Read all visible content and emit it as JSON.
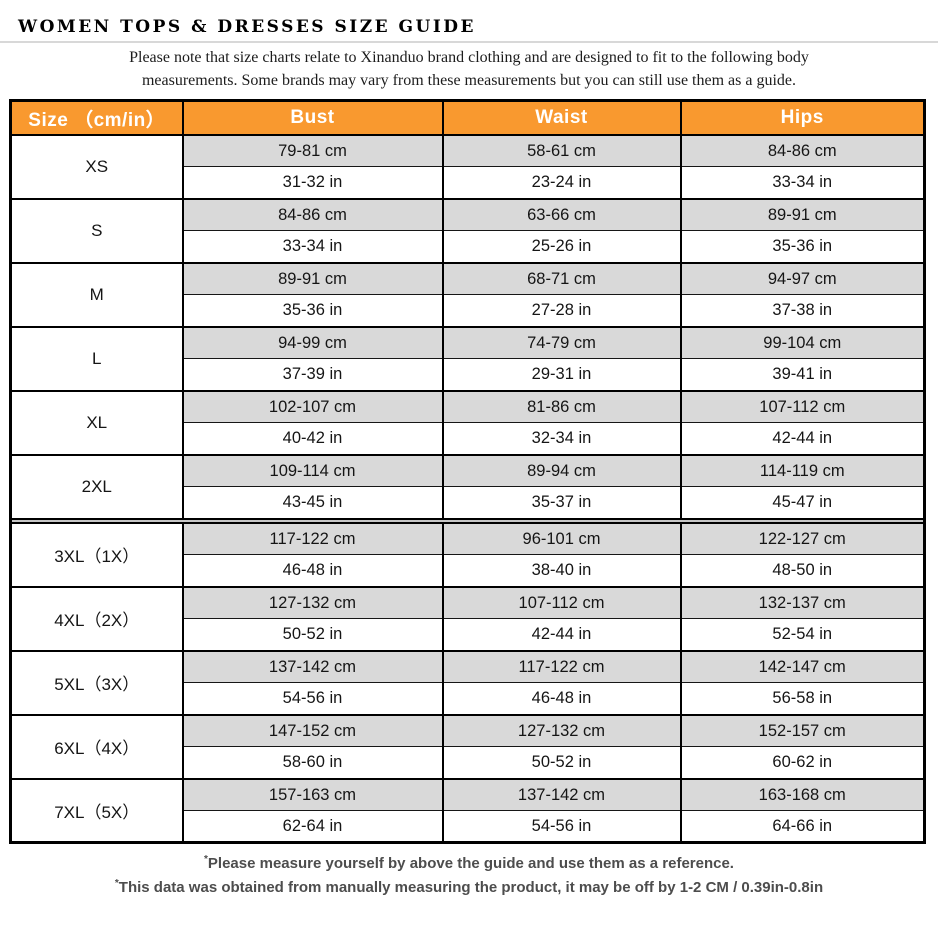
{
  "page": {
    "title": "WOMEN TOPS & DRESSES SIZE GUIDE",
    "note_line1": "Please note that size charts relate to  Xinanduo brand clothing and are designed to fit to the following body",
    "note_line2": "measurements. Some brands may vary from these measurements but you can still use them as a guide."
  },
  "colors": {
    "header_orange": "#f9992f",
    "row_gray": "#d9d9d9",
    "separator_gray": "#c6c6c6"
  },
  "table": {
    "columns": [
      "Size （cm/in）",
      "Bust",
      "Waist",
      "Hips"
    ],
    "rows": [
      {
        "size": "XS",
        "bust_cm": "79-81 cm",
        "waist_cm": "58-61 cm",
        "hips_cm": "84-86 cm",
        "bust_in": "31-32 in",
        "waist_in": "23-24 in",
        "hips_in": "33-34 in",
        "divider_before": false
      },
      {
        "size": "S",
        "bust_cm": "84-86 cm",
        "waist_cm": "63-66 cm",
        "hips_cm": "89-91 cm",
        "bust_in": "33-34 in",
        "waist_in": "25-26 in",
        "hips_in": "35-36 in",
        "divider_before": false
      },
      {
        "size": "M",
        "bust_cm": "89-91 cm",
        "waist_cm": "68-71 cm",
        "hips_cm": "94-97 cm",
        "bust_in": "35-36 in",
        "waist_in": "27-28 in",
        "hips_in": "37-38 in",
        "divider_before": false
      },
      {
        "size": "L",
        "bust_cm": "94-99 cm",
        "waist_cm": "74-79 cm",
        "hips_cm": "99-104 cm",
        "bust_in": "37-39 in",
        "waist_in": "29-31 in",
        "hips_in": "39-41 in",
        "divider_before": false
      },
      {
        "size": "XL",
        "bust_cm": "102-107 cm",
        "waist_cm": "81-86 cm",
        "hips_cm": "107-112 cm",
        "bust_in": "40-42 in",
        "waist_in": "32-34 in",
        "hips_in": "42-44 in",
        "divider_before": false
      },
      {
        "size": "2XL",
        "bust_cm": "109-114 cm",
        "waist_cm": "89-94 cm",
        "hips_cm": "114-119 cm",
        "bust_in": "43-45 in",
        "waist_in": "35-37 in",
        "hips_in": "45-47 in",
        "divider_before": false
      },
      {
        "size": "3XL（1X）",
        "bust_cm": "117-122 cm",
        "waist_cm": "96-101 cm",
        "hips_cm": "122-127 cm",
        "bust_in": "46-48 in",
        "waist_in": "38-40 in",
        "hips_in": "48-50 in",
        "divider_before": true
      },
      {
        "size": "4XL（2X）",
        "bust_cm": "127-132 cm",
        "waist_cm": "107-112 cm",
        "hips_cm": "132-137 cm",
        "bust_in": "50-52 in",
        "waist_in": "42-44 in",
        "hips_in": "52-54 in",
        "divider_before": false
      },
      {
        "size": "5XL（3X）",
        "bust_cm": "137-142 cm",
        "waist_cm": "117-122 cm",
        "hips_cm": "142-147 cm",
        "bust_in": "54-56 in",
        "waist_in": "46-48 in",
        "hips_in": "56-58 in",
        "divider_before": false
      },
      {
        "size": "6XL（4X）",
        "bust_cm": "147-152 cm",
        "waist_cm": "127-132 cm",
        "hips_cm": "152-157 cm",
        "bust_in": "58-60 in",
        "waist_in": "50-52 in",
        "hips_in": "60-62 in",
        "divider_before": false
      },
      {
        "size": "7XL（5X）",
        "bust_cm": "157-163 cm",
        "waist_cm": "137-142 cm",
        "hips_cm": "163-168 cm",
        "bust_in": "62-64 in",
        "waist_in": "54-56 in",
        "hips_in": "64-66 in",
        "divider_before": false
      }
    ]
  },
  "footnotes": [
    {
      "marker": "*",
      "text": "Please measure yourself by above the guide and use them as a reference."
    },
    {
      "marker": "*",
      "text": "This data was obtained from manually measuring the product, it may be off by 1-2 CM / 0.39in-0.8in"
    }
  ]
}
